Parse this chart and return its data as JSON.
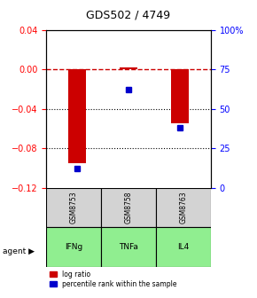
{
  "title": "GDS502 / 4749",
  "samples": [
    "GSM8753",
    "GSM8758",
    "GSM8763"
  ],
  "agents": [
    "IFNg",
    "TNFa",
    "IL4"
  ],
  "log_ratios": [
    -0.095,
    0.002,
    -0.055
  ],
  "percentile_ranks": [
    0.12,
    0.62,
    0.38
  ],
  "ylim_left": [
    -0.12,
    0.04
  ],
  "ylim_right": [
    0,
    100
  ],
  "yticks_left": [
    0.04,
    0,
    -0.04,
    -0.08,
    -0.12
  ],
  "yticks_right": [
    100,
    75,
    50,
    25,
    0
  ],
  "hline_y": 0,
  "dotted_lines": [
    -0.04,
    -0.08
  ],
  "bar_color": "#cc0000",
  "dot_color": "#0000cc",
  "agent_colors": [
    "#90ee90",
    "#90ee90",
    "#90ee90"
  ],
  "sample_bg": "#d3d3d3",
  "agent_label": "agent"
}
